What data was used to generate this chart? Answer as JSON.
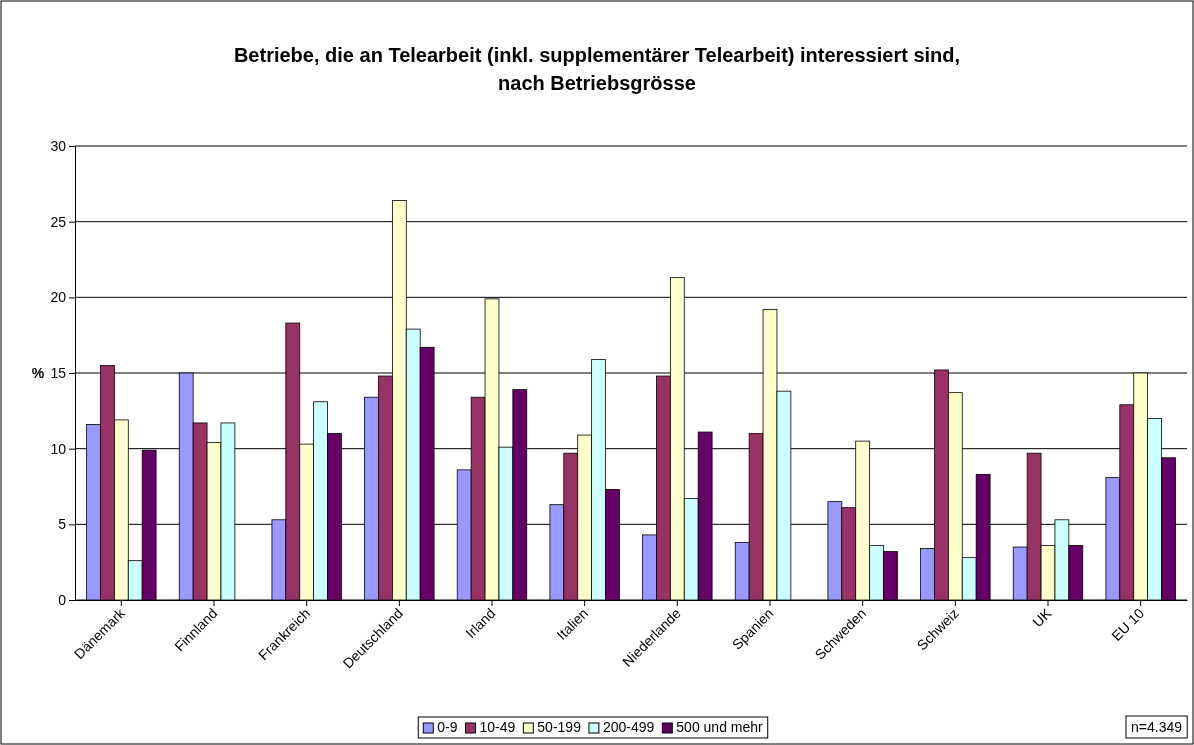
{
  "chart_data": {
    "type": "bar",
    "title": "Betriebe, die an Telearbeit (inkl. supplementärer Telearbeit) interessiert sind, nach Betriebsgrösse",
    "ylabel": "%",
    "categories": [
      "Dänemark",
      "Finnland",
      "Frankreich",
      "Deutschland",
      "Irland",
      "Italien",
      "Niederlande",
      "Spanien",
      "Schweden",
      "Schweiz",
      "UK",
      "EU 10"
    ],
    "series": [
      {
        "name": "0-9",
        "color": "#9999ff",
        "values": [
          11.6,
          15.0,
          5.3,
          13.4,
          8.6,
          6.3,
          4.3,
          3.8,
          6.5,
          3.4,
          3.5,
          8.1
        ]
      },
      {
        "name": "10-49",
        "color": "#993366",
        "values": [
          15.5,
          11.7,
          18.3,
          14.8,
          13.4,
          9.7,
          14.8,
          11.0,
          6.1,
          15.2,
          9.7,
          12.9
        ]
      },
      {
        "name": "50-199",
        "color": "#ffffcc",
        "values": [
          11.9,
          10.4,
          10.3,
          26.4,
          19.9,
          10.9,
          21.3,
          19.2,
          10.5,
          13.7,
          3.6,
          15.0
        ]
      },
      {
        "name": "200-499",
        "color": "#ccffff",
        "values": [
          2.6,
          11.7,
          13.1,
          17.9,
          10.1,
          15.9,
          6.7,
          13.8,
          3.6,
          2.8,
          5.3,
          12.0
        ]
      },
      {
        "name": "500 und mehr",
        "color": "#660066",
        "values": [
          9.9,
          null,
          11.0,
          16.7,
          13.9,
          7.3,
          11.1,
          null,
          3.2,
          8.3,
          3.6,
          9.4
        ]
      }
    ],
    "ylim": [
      0,
      30
    ],
    "yticks": [
      0,
      5,
      10,
      15,
      20,
      25,
      30
    ],
    "grid": "y",
    "legend": "bottom",
    "annotations": [
      "n=4.349"
    ]
  }
}
